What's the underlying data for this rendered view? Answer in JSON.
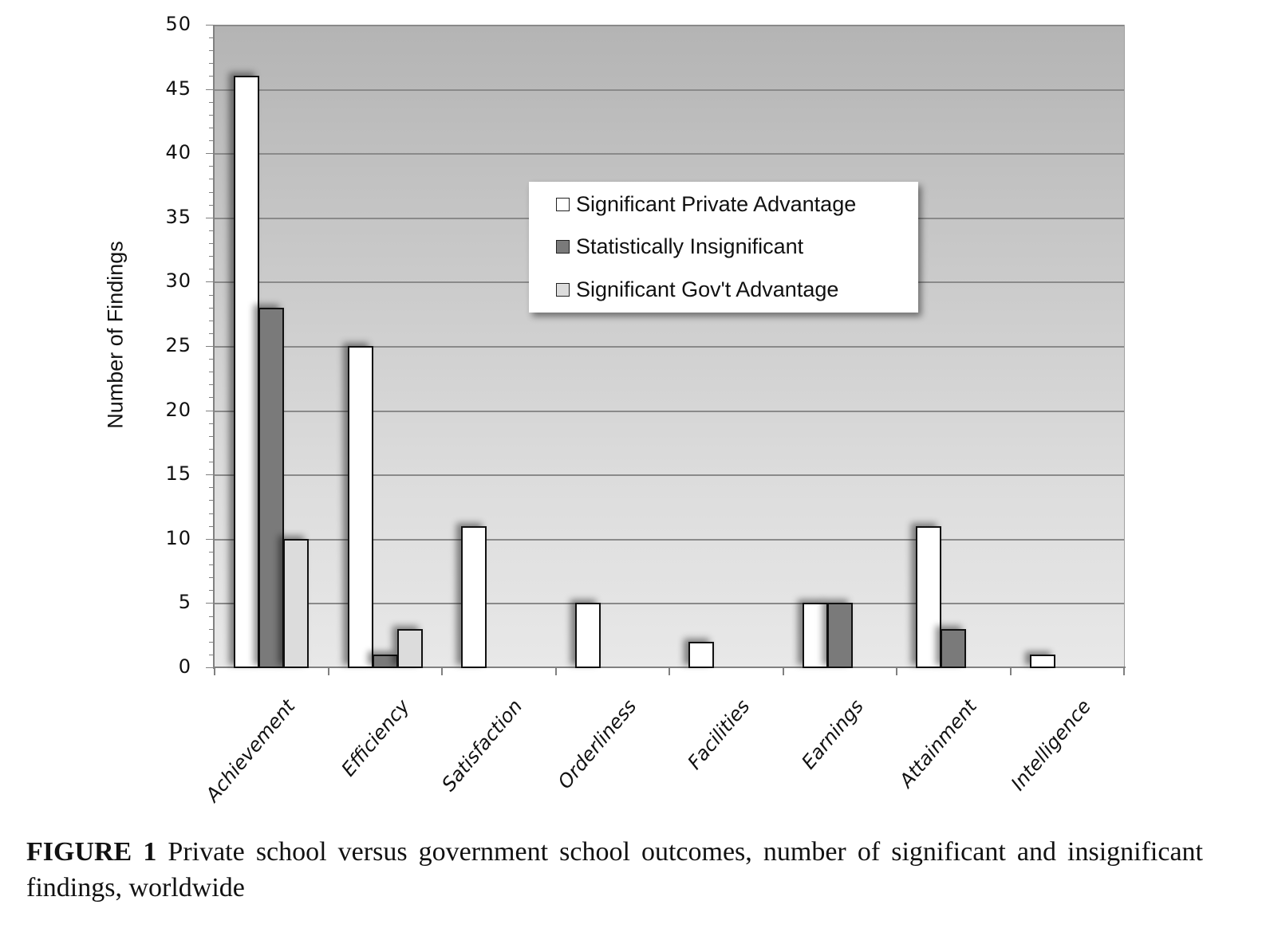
{
  "chart_data": {
    "type": "bar",
    "title": "",
    "xlabel": "",
    "ylabel": "Number of Findings",
    "ylim": [
      0,
      50
    ],
    "yticks": [
      0,
      5,
      10,
      15,
      20,
      25,
      30,
      35,
      40,
      45,
      50
    ],
    "grid": true,
    "legend_position": "upper center (inside plot)",
    "categories": [
      "Achievement",
      "Efficiency",
      "Satisfaction",
      "Orderliness",
      "Facilities",
      "Earnings",
      "Attainment",
      "Intelligence"
    ],
    "series": [
      {
        "name": "Significant Private Advantage",
        "color": "#ffffff",
        "values": [
          46,
          25,
          11,
          5,
          2,
          5,
          11,
          1
        ]
      },
      {
        "name": "Statistically Insignificant",
        "color": "#7a7a7a",
        "values": [
          28,
          1,
          0,
          0,
          0,
          5,
          3,
          0
        ]
      },
      {
        "name": "Significant Gov't Advantage",
        "color": "#dcdcdc",
        "values": [
          10,
          3,
          0,
          0,
          0,
          0,
          0,
          0
        ]
      }
    ]
  },
  "legend": {
    "items": [
      {
        "label": "Significant Private Advantage",
        "color": "#ffffff"
      },
      {
        "label": "Statistically Insignificant",
        "color": "#7a7a7a"
      },
      {
        "label": "Significant Gov't Advantage",
        "color": "#dcdcdc"
      }
    ]
  },
  "axis": {
    "y_title": "Number of Findings"
  },
  "caption": {
    "label": "FIGURE 1",
    "text": " Private school versus government school outcomes, number of significant and insignificant findings, worldwide"
  }
}
